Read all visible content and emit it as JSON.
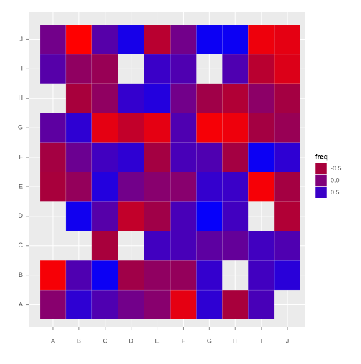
{
  "chart_data": {
    "type": "heatmap",
    "x": [
      "A",
      "B",
      "C",
      "D",
      "E",
      "F",
      "G",
      "H",
      "I",
      "J"
    ],
    "y": [
      "A",
      "B",
      "C",
      "D",
      "E",
      "F",
      "G",
      "H",
      "I",
      "J"
    ],
    "values": [
      [
        -0.1,
        0.6,
        0.35,
        0.1,
        -0.1,
        -0.85,
        0.6,
        -0.5,
        0.4,
        null
      ],
      [
        -0.95,
        0.35,
        0.9,
        -0.4,
        -0.2,
        -0.25,
        0.55,
        null,
        0.45,
        0.65
      ],
      [
        null,
        null,
        -0.5,
        null,
        0.45,
        0.4,
        0.25,
        0.2,
        0.45,
        0.35
      ],
      [
        null,
        0.85,
        0.3,
        -0.65,
        -0.4,
        0.4,
        0.95,
        0.45,
        null,
        -0.55
      ],
      [
        -0.5,
        -0.25,
        0.7,
        0.1,
        -0.1,
        -0.1,
        0.55,
        0.5,
        -0.95,
        -0.45
      ],
      [
        -0.45,
        0.15,
        0.45,
        0.6,
        -0.45,
        0.4,
        0.35,
        -0.45,
        0.9,
        0.6
      ],
      [
        0.25,
        0.6,
        -0.85,
        -0.65,
        -0.85,
        0.35,
        -0.95,
        -0.9,
        -0.45,
        -0.3
      ],
      [
        null,
        -0.5,
        -0.2,
        0.55,
        0.7,
        0.1,
        -0.4,
        -0.55,
        -0.15,
        -0.45
      ],
      [
        0.3,
        -0.2,
        -0.3,
        null,
        0.5,
        0.35,
        null,
        0.35,
        -0.6,
        -0.8
      ],
      [
        0.1,
        -1,
        0.3,
        0.8,
        -0.6,
        0.1,
        0.9,
        0.9,
        -0.9,
        -0.85
      ]
    ],
    "fill_lim": [
      -1,
      1
    ],
    "fill_colors": [
      "#ff0000",
      "#a8003c",
      "#80007a",
      "#3a00c8",
      "#0000ff"
    ],
    "legend_title": "freq",
    "legend_ticks": [
      -0.5,
      {
        "value": 0,
        "label": "0.0"
      },
      0.5
    ],
    "legend_position": "right",
    "grid": true
  }
}
